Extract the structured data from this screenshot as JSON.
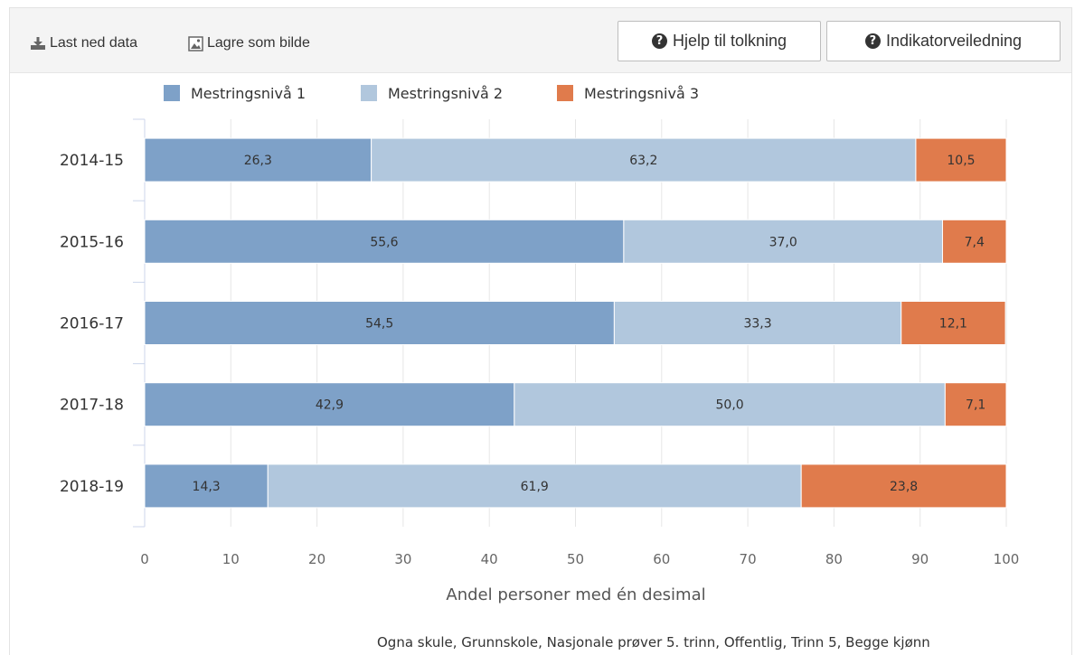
{
  "toolbar": {
    "download_label": "Last ned data",
    "save_image_label": "Lagre som bilde",
    "help_label": "Hjelp til tolkning",
    "indicator_label": "Indikatorveiledning"
  },
  "footnote": "Ogna skule, Grunnskole, Nasjonale prøver 5. trinn, Offentlig, Trinn 5, Begge kjønn",
  "chart_data": {
    "type": "bar",
    "orientation": "horizontal",
    "stacked": true,
    "categories": [
      "2014-15",
      "2015-16",
      "2016-17",
      "2017-18",
      "2018-19"
    ],
    "series": [
      {
        "name": "Mestringsnivå 1",
        "color": "#7ea1c8",
        "values": [
          26.3,
          55.6,
          54.5,
          42.9,
          14.3
        ],
        "labels": [
          "26,3",
          "55,6",
          "54,5",
          "42,9",
          "14,3"
        ]
      },
      {
        "name": "Mestringsnivå 2",
        "color": "#b1c7dd",
        "values": [
          63.2,
          37.0,
          33.3,
          50.0,
          61.9
        ],
        "labels": [
          "63,2",
          "37,0",
          "33,3",
          "50,0",
          "61,9"
        ]
      },
      {
        "name": "Mestringsnivå 3",
        "color": "#e07b4c",
        "values": [
          10.5,
          7.4,
          12.1,
          7.1,
          23.8
        ],
        "labels": [
          "10,5",
          "7,4",
          "12,1",
          "7,1",
          "23,8"
        ]
      }
    ],
    "xlim": [
      0,
      100
    ],
    "xticks": [
      "0",
      "10",
      "20",
      "30",
      "40",
      "50",
      "60",
      "70",
      "80",
      "90",
      "100"
    ],
    "xlabel": "Andel personer med én desimal",
    "ylabel": "",
    "grid": true,
    "legend_position": "top"
  }
}
